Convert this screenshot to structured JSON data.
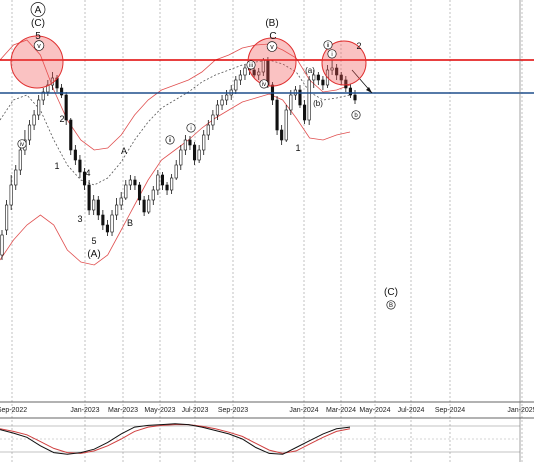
{
  "chart_data": {
    "type": "candlestick",
    "title": "",
    "x_ticks": [
      "Sep-2022",
      "Jan-2023",
      "Mar-2023",
      "May-2023",
      "Jul-2023",
      "Sep-2023",
      "Jan-2024",
      "Mar-2024",
      "May-2024",
      "Jul-2024",
      "Sep-2024",
      "Jan-2025"
    ],
    "grid": "vertical dashed",
    "y_axis_labels_visible": false,
    "candles_approx_y_per_week": [
      [
        255,
        235,
        260,
        230
      ],
      [
        230,
        205,
        235,
        200
      ],
      [
        205,
        185,
        210,
        175
      ],
      [
        185,
        170,
        190,
        165
      ],
      [
        170,
        150,
        175,
        145
      ],
      [
        150,
        140,
        155,
        130
      ],
      [
        140,
        125,
        145,
        120
      ],
      [
        125,
        115,
        130,
        110
      ],
      [
        115,
        100,
        120,
        95
      ],
      [
        100,
        92,
        105,
        88
      ],
      [
        92,
        85,
        96,
        80
      ],
      [
        85,
        78,
        90,
        72
      ],
      [
        78,
        88,
        92,
        75
      ],
      [
        88,
        95,
        98,
        84
      ],
      [
        95,
        120,
        125,
        92
      ],
      [
        120,
        150,
        155,
        118
      ],
      [
        150,
        160,
        165,
        145
      ],
      [
        160,
        172,
        178,
        155
      ],
      [
        172,
        185,
        190,
        168
      ],
      [
        185,
        210,
        215,
        180
      ],
      [
        210,
        200,
        215,
        195
      ],
      [
        200,
        215,
        220,
        196
      ],
      [
        215,
        225,
        230,
        210
      ],
      [
        225,
        232,
        236,
        220
      ],
      [
        232,
        215,
        236,
        210
      ],
      [
        215,
        205,
        220,
        198
      ],
      [
        205,
        198,
        210,
        192
      ],
      [
        198,
        185,
        200,
        180
      ],
      [
        185,
        180,
        190,
        175
      ],
      [
        180,
        185,
        190,
        176
      ],
      [
        185,
        200,
        205,
        182
      ],
      [
        200,
        212,
        216,
        196
      ],
      [
        212,
        200,
        214,
        195
      ],
      [
        200,
        190,
        205,
        186
      ],
      [
        190,
        175,
        195,
        170
      ],
      [
        175,
        185,
        190,
        172
      ],
      [
        185,
        190,
        195,
        182
      ],
      [
        190,
        178,
        194,
        174
      ],
      [
        178,
        165,
        180,
        160
      ],
      [
        165,
        150,
        170,
        145
      ],
      [
        150,
        140,
        155,
        135
      ],
      [
        140,
        145,
        150,
        136
      ],
      [
        145,
        160,
        165,
        142
      ],
      [
        160,
        150,
        163,
        145
      ],
      [
        150,
        135,
        155,
        130
      ],
      [
        135,
        125,
        140,
        120
      ],
      [
        125,
        115,
        130,
        110
      ],
      [
        115,
        105,
        120,
        100
      ],
      [
        105,
        100,
        110,
        95
      ],
      [
        100,
        95,
        105,
        90
      ],
      [
        95,
        90,
        100,
        85
      ],
      [
        90,
        80,
        94,
        76
      ],
      [
        80,
        75,
        85,
        70
      ],
      [
        75,
        68,
        80,
        65
      ],
      [
        68,
        70,
        75,
        62
      ],
      [
        70,
        75,
        78,
        65
      ],
      [
        75,
        72,
        80,
        68
      ],
      [
        72,
        60,
        76,
        58
      ],
      [
        60,
        85,
        88,
        57
      ],
      [
        85,
        100,
        105,
        82
      ],
      [
        100,
        130,
        135,
        96
      ],
      [
        130,
        140,
        145,
        125
      ],
      [
        140,
        110,
        142,
        105
      ],
      [
        110,
        95,
        115,
        90
      ],
      [
        95,
        90,
        100,
        86
      ],
      [
        90,
        105,
        108,
        85
      ],
      [
        105,
        120,
        124,
        100
      ],
      [
        120,
        80,
        125,
        76
      ],
      [
        80,
        75,
        88,
        70
      ],
      [
        75,
        80,
        85,
        72
      ],
      [
        80,
        85,
        90,
        76
      ],
      [
        85,
        70,
        88,
        65
      ],
      [
        70,
        68,
        75,
        60
      ],
      [
        68,
        75,
        80,
        64
      ],
      [
        75,
        80,
        85,
        72
      ],
      [
        80,
        88,
        92,
        76
      ],
      [
        88,
        95,
        98,
        84
      ],
      [
        95,
        100,
        104,
        90
      ]
    ],
    "bollinger_upper_approx": [
      60,
      45,
      40,
      55,
      90,
      120,
      140,
      150,
      148,
      135,
      115,
      100,
      90,
      85,
      80,
      72,
      60,
      55,
      48,
      45,
      44,
      50,
      58,
      80,
      92,
      90,
      85
    ],
    "bollinger_middle_approx": [
      120,
      100,
      95,
      110,
      140,
      165,
      180,
      185,
      178,
      162,
      140,
      122,
      108,
      100,
      92,
      82,
      75,
      70,
      65,
      62,
      60,
      64,
      72,
      92,
      100,
      98,
      95
    ],
    "bollinger_lower_approx": [
      260,
      240,
      225,
      215,
      225,
      250,
      262,
      265,
      255,
      230,
      205,
      180,
      160,
      150,
      140,
      128,
      118,
      110,
      102,
      98,
      94,
      100,
      118,
      138,
      140,
      135,
      132
    ],
    "resistance_red": 60,
    "support_blue": 93,
    "wave_labels": [
      {
        "text": "A",
        "circled": true,
        "note": "top-left"
      },
      {
        "text": "(C)",
        "note": "top-left"
      },
      {
        "text": "5",
        "note": "top-left"
      },
      {
        "text": "v",
        "circled": true
      },
      {
        "text": "iv",
        "circled": true
      },
      {
        "text": "2"
      },
      {
        "text": "1"
      },
      {
        "text": "4"
      },
      {
        "text": "3"
      },
      {
        "text": "5"
      },
      {
        "text": "(A)"
      },
      {
        "text": "A"
      },
      {
        "text": "B"
      },
      {
        "text": "ii",
        "circled": true
      },
      {
        "text": "i",
        "circled": true
      },
      {
        "text": "iii",
        "circled": true
      },
      {
        "text": "iv",
        "circled": true
      },
      {
        "text": "(B)"
      },
      {
        "text": "C"
      },
      {
        "text": "v",
        "circled": true
      },
      {
        "text": "1"
      },
      {
        "text": "(a)"
      },
      {
        "text": "(b)"
      },
      {
        "text": "ii",
        "circled": true
      },
      {
        "text": "i",
        "circled": true
      },
      {
        "text": "2"
      },
      {
        "text": "b",
        "circled": true
      },
      {
        "text": "(C)"
      },
      {
        "text": "B",
        "circled": true
      }
    ],
    "oscillator": {
      "panel": "bottom",
      "line1_approx": [
        0.55,
        0.35,
        0.1,
        -0.4,
        -0.8,
        -0.9,
        -0.8,
        -0.6,
        -0.2,
        0.3,
        0.7,
        0.8,
        0.85,
        0.9,
        0.85,
        0.7,
        0.5,
        0.3,
        0.0,
        -0.5,
        -0.85,
        -0.9,
        -0.5,
        -0.1,
        0.3,
        0.6,
        0.7
      ],
      "line2_approx": [
        0.6,
        0.45,
        0.25,
        -0.15,
        -0.55,
        -0.8,
        -0.85,
        -0.7,
        -0.4,
        0.0,
        0.45,
        0.7,
        0.8,
        0.85,
        0.85,
        0.75,
        0.6,
        0.4,
        0.15,
        -0.25,
        -0.65,
        -0.85,
        -0.7,
        -0.3,
        0.1,
        0.45,
        0.6
      ]
    }
  }
}
